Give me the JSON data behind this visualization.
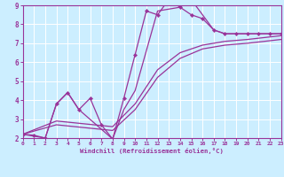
{
  "xlabel": "Windchill (Refroidissement éolien,°C)",
  "xlim": [
    0,
    23
  ],
  "ylim": [
    2,
    9
  ],
  "yticks": [
    2,
    3,
    4,
    5,
    6,
    7,
    8,
    9
  ],
  "xticks": [
    0,
    1,
    2,
    3,
    4,
    5,
    6,
    7,
    8,
    9,
    10,
    11,
    12,
    13,
    14,
    15,
    16,
    17,
    18,
    19,
    20,
    21,
    22,
    23
  ],
  "bg_color": "#cceeff",
  "grid_color": "#ffffff",
  "line_color": "#993399",
  "line1_x": [
    0,
    1,
    2,
    3,
    4,
    5,
    6,
    7,
    8,
    9,
    10,
    11,
    12,
    13,
    14,
    15,
    16,
    17,
    18,
    19,
    20,
    21,
    22,
    23
  ],
  "line1_y": [
    2.2,
    2.15,
    2.0,
    3.8,
    4.4,
    3.5,
    4.1,
    2.7,
    1.95,
    4.1,
    6.4,
    8.7,
    8.5,
    9.3,
    8.9,
    8.5,
    8.3,
    7.7,
    7.5,
    7.5,
    7.5,
    7.5,
    7.5,
    7.5
  ],
  "line2_x": [
    0,
    2,
    3,
    4,
    5,
    8,
    9,
    10,
    12,
    14,
    15,
    16,
    17,
    18,
    19,
    20,
    21,
    22,
    23
  ],
  "line2_y": [
    2.2,
    2.0,
    3.8,
    4.4,
    3.5,
    1.95,
    3.5,
    4.5,
    8.7,
    8.9,
    9.3,
    8.5,
    7.7,
    7.5,
    7.5,
    7.5,
    7.5,
    7.5,
    7.5
  ],
  "line3_x": [
    0,
    3,
    8,
    10,
    12,
    14,
    16,
    18,
    20,
    23
  ],
  "line3_y": [
    2.2,
    2.9,
    2.6,
    3.8,
    5.6,
    6.5,
    6.9,
    7.1,
    7.2,
    7.4
  ],
  "line4_x": [
    0,
    3,
    8,
    10,
    12,
    14,
    16,
    18,
    20,
    23
  ],
  "line4_y": [
    2.2,
    2.7,
    2.4,
    3.5,
    5.2,
    6.2,
    6.7,
    6.9,
    7.0,
    7.2
  ]
}
